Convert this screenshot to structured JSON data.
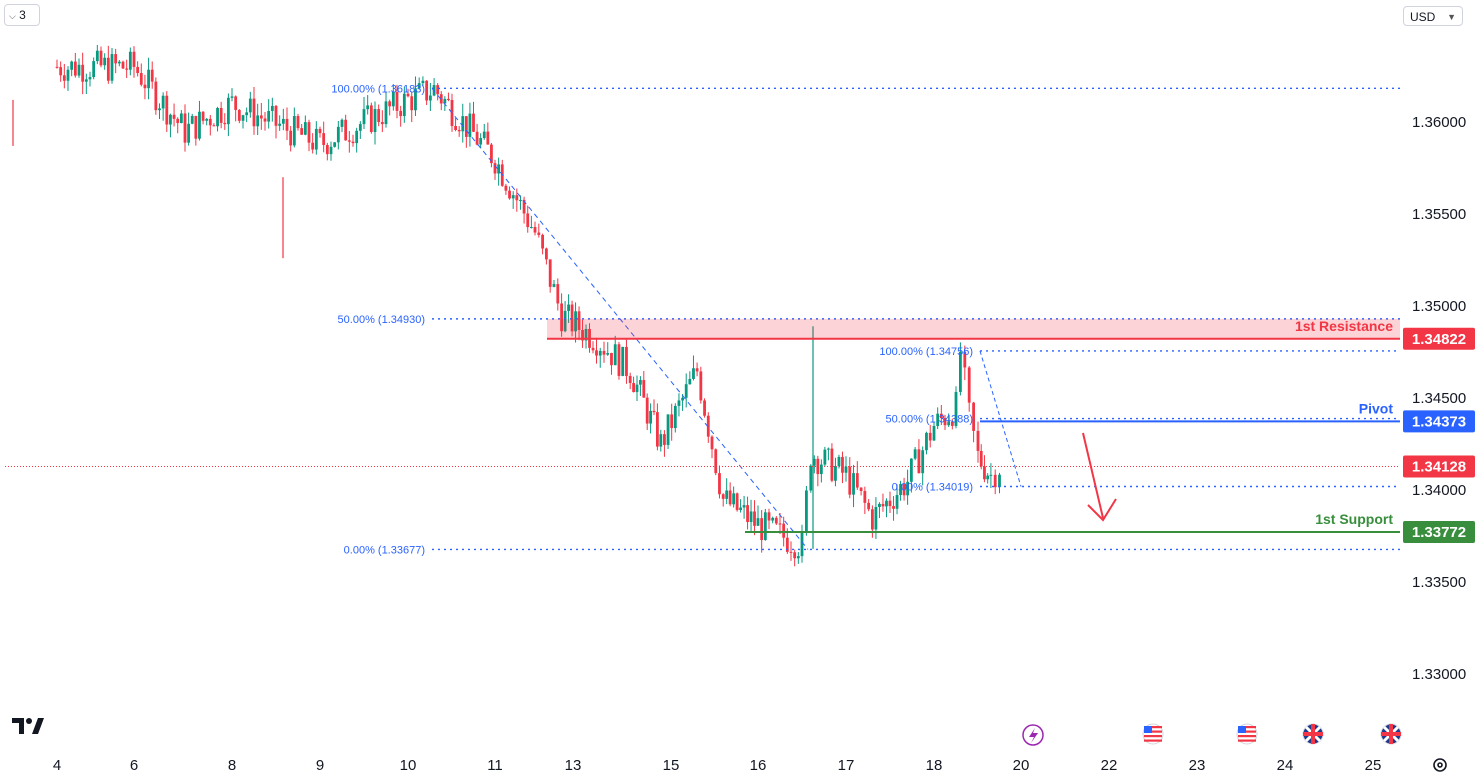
{
  "toolbar": {
    "interval_label": "3",
    "currency": "USD"
  },
  "chart_data": {
    "type": "candlestick",
    "y_axis": {
      "range": [
        1.3285,
        1.366
      ],
      "ticks": [
        "1.33000",
        "1.33500",
        "1.34000",
        "1.34500",
        "1.35000",
        "1.35500",
        "1.36000"
      ]
    },
    "x_axis": {
      "ticks": [
        "4",
        "6",
        "8",
        "9",
        "10",
        "11",
        "13",
        "15",
        "16",
        "17",
        "18",
        "20",
        "22",
        "23",
        "24",
        "25"
      ]
    },
    "levels": [
      {
        "name": "1st Resistance",
        "value": 1.34822,
        "value_label": "1.34822",
        "color": "#f23645"
      },
      {
        "name": "Pivot",
        "value": 1.34373,
        "value_label": "1.34373",
        "color": "#2962ff"
      },
      {
        "name": "1st Support",
        "value": 1.33772,
        "value_label": "1.33772",
        "color": "#388e3c"
      }
    ],
    "last_price": {
      "value": 1.34128,
      "label": "1.34128",
      "color": "#f23645"
    },
    "resistance_zone": [
      1.34822,
      1.3493
    ],
    "fib_major": [
      {
        "label": "100.00% (1.36183)",
        "value": 1.36183
      },
      {
        "label": "50.00% (1.34930)",
        "value": 1.3493
      },
      {
        "label": "0.00% (1.33677)",
        "value": 1.33677
      }
    ],
    "fib_minor": [
      {
        "label": "100.00% (1.34756)",
        "value": 1.34756
      },
      {
        "label": "50.00% (1.34388)",
        "value": 1.34388
      },
      {
        "label": "0.00% (1.34019)",
        "value": 1.34019
      }
    ],
    "price_path": [
      [
        4,
        1.363
      ],
      [
        6,
        1.363
      ],
      [
        7,
        1.3595
      ],
      [
        8,
        1.361
      ],
      [
        9,
        1.3588
      ],
      [
        10,
        1.3612
      ],
      [
        10.3,
        1.3618
      ],
      [
        11,
        1.358
      ],
      [
        12,
        1.354
      ],
      [
        12.7,
        1.3495
      ],
      [
        13.5,
        1.3482
      ],
      [
        14.2,
        1.3465
      ],
      [
        14.8,
        1.3425
      ],
      [
        15.3,
        1.3465
      ],
      [
        15.6,
        1.3395
      ],
      [
        16,
        1.3381
      ],
      [
        16.5,
        1.337
      ],
      [
        16.6,
        1.342
      ],
      [
        17,
        1.3408
      ],
      [
        17.3,
        1.3385
      ],
      [
        17.7,
        1.3405
      ],
      [
        18,
        1.3435
      ],
      [
        18.5,
        1.3445
      ],
      [
        18.6,
        1.34756
      ],
      [
        18.8,
        1.344
      ],
      [
        19,
        1.3418
      ],
      [
        19.3,
        1.3408
      ],
      [
        19.5,
        1.34128
      ]
    ],
    "forecast": "down"
  },
  "icons": [
    "tradingview-logo",
    "lightning-event-icon",
    "us-flag-icon",
    "us-flag-icon",
    "uk-flag-icon",
    "uk-flag-icon",
    "settings-icon"
  ]
}
